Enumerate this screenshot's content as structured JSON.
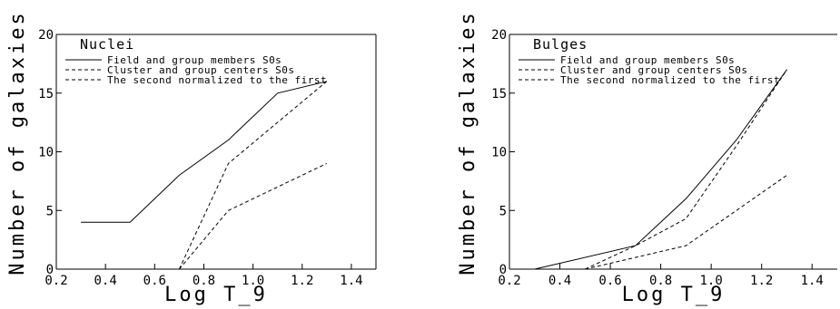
{
  "chart_data": [
    {
      "type": "line",
      "title": "Nuclei",
      "xlabel": "Log T_9",
      "ylabel": "Number of galaxies",
      "xlim": [
        0.2,
        1.5
      ],
      "ylim": [
        0,
        20
      ],
      "xticks": [
        "0.2",
        "0.4",
        "0.6",
        "0.8",
        "1.0",
        "1.2",
        "1.4"
      ],
      "yticks": [
        "0",
        "5",
        "10",
        "15",
        "20"
      ],
      "legend_position": "top-left",
      "series": [
        {
          "name": "Field and group members S0s",
          "style": "solid",
          "x": [
            0.3,
            0.5,
            0.7,
            0.9,
            1.1,
            1.3
          ],
          "y": [
            4,
            4,
            8,
            11,
            15,
            16
          ]
        },
        {
          "name": "Cluster and group centers S0s",
          "style": "dashed",
          "x": [
            0.7,
            0.9,
            1.3
          ],
          "y": [
            0,
            5,
            9
          ]
        },
        {
          "name": "The second normalized to the first",
          "style": "dashed",
          "x": [
            0.7,
            0.9,
            1.3
          ],
          "y": [
            0,
            9,
            16
          ]
        }
      ]
    },
    {
      "type": "line",
      "title": "Bulges",
      "xlabel": "Log T_9",
      "ylabel": "Number of galaxies",
      "xlim": [
        0.2,
        1.5
      ],
      "ylim": [
        0,
        20
      ],
      "xticks": [
        "0.2",
        "0.4",
        "0.6",
        "0.8",
        "1.0",
        "1.2",
        "1.4"
      ],
      "yticks": [
        "0",
        "5",
        "10",
        "15",
        "20"
      ],
      "legend_position": "top-left",
      "series": [
        {
          "name": "Field and group members S0s",
          "style": "solid",
          "x": [
            0.3,
            0.7,
            0.9,
            1.1,
            1.3
          ],
          "y": [
            0,
            2,
            6,
            11,
            17
          ]
        },
        {
          "name": "Cluster and group centers S0s",
          "style": "dashed",
          "x": [
            0.5,
            0.7,
            0.9,
            1.3
          ],
          "y": [
            0,
            1,
            2,
            8
          ]
        },
        {
          "name": "The second normalized to the first",
          "style": "dashed",
          "x": [
            0.5,
            0.7,
            0.9,
            1.1,
            1.3
          ],
          "y": [
            0,
            2,
            4.3,
            10.5,
            17
          ]
        }
      ]
    }
  ]
}
